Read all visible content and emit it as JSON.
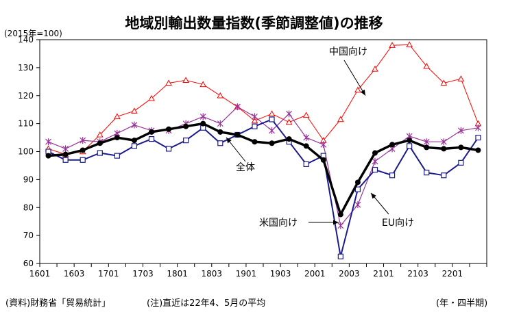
{
  "chart_data": {
    "type": "line",
    "title": "地域別輸出数量指数(季節調整値)の推移",
    "base_note": "(2015年=100)",
    "x_axis_note": "(年・四半期)",
    "source_note": "(資料)財務省「貿易統計」",
    "footnote": "(注)直近は22年4、5月の平均",
    "ylim": [
      60,
      140
    ],
    "yticks": [
      60,
      70,
      80,
      90,
      100,
      110,
      120,
      130,
      140
    ],
    "grid": false,
    "x": [
      "1601",
      "1602",
      "1603",
      "1604",
      "1701",
      "1702",
      "1703",
      "1704",
      "1801",
      "1802",
      "1803",
      "1804",
      "1901",
      "1902",
      "1903",
      "1904",
      "2001",
      "2002",
      "2003",
      "2004",
      "2101",
      "2102",
      "2103",
      "2104",
      "2201",
      "2202"
    ],
    "xtick_labels": [
      "1601",
      "1603",
      "1701",
      "1703",
      "1801",
      "1803",
      "1901",
      "1903",
      "2001",
      "2003",
      "2101",
      "2103",
      "2201"
    ],
    "series": [
      {
        "name": "中国向け",
        "color": "#ff0000",
        "marker": "triangle",
        "values": [
          101,
          99,
          100,
          106,
          112.5,
          114.5,
          119,
          124.5,
          125.5,
          124,
          120,
          116,
          111,
          113.5,
          110.5,
          113,
          104,
          111.5,
          122,
          129.5,
          138,
          138.2,
          130.5,
          124.5,
          126,
          110
        ]
      },
      {
        "name": "EU向け",
        "color": "#993399",
        "marker": "asterisk",
        "values": [
          103.5,
          101,
          104,
          103.5,
          106.5,
          109.5,
          107.5,
          107.5,
          110,
          112.5,
          110,
          116,
          112.5,
          107.5,
          113.5,
          105,
          102.5,
          73.5,
          81,
          96.5,
          101,
          105.5,
          103.5,
          103.5,
          107.5,
          108.5
        ]
      },
      {
        "name": "米国向け",
        "color": "#1a1a8c",
        "marker": "square",
        "values": [
          100,
          97,
          97,
          99.5,
          98.5,
          102,
          104.5,
          101,
          104,
          108.5,
          103,
          106,
          109,
          111.5,
          103.5,
          95.5,
          98.5,
          62.5,
          86.5,
          93.5,
          91.5,
          102,
          92.5,
          91.5,
          96,
          105
        ]
      },
      {
        "name": "全体",
        "color": "#000000",
        "marker": "circle",
        "values": [
          98.5,
          99,
          100.5,
          103,
          105,
          104,
          107,
          108,
          109,
          110,
          107,
          106,
          103.5,
          103,
          104.5,
          102,
          97,
          77.5,
          89,
          99.5,
          102.5,
          104,
          101.5,
          101,
          101.5,
          100.5
        ]
      }
    ],
    "annotations": [
      {
        "label": "中国向け",
        "series": "中国向け"
      },
      {
        "label": "全体",
        "series": "全体"
      },
      {
        "label": "米国向け",
        "series": "米国向け"
      },
      {
        "label": "EU向け",
        "series": "EU向け"
      }
    ]
  }
}
